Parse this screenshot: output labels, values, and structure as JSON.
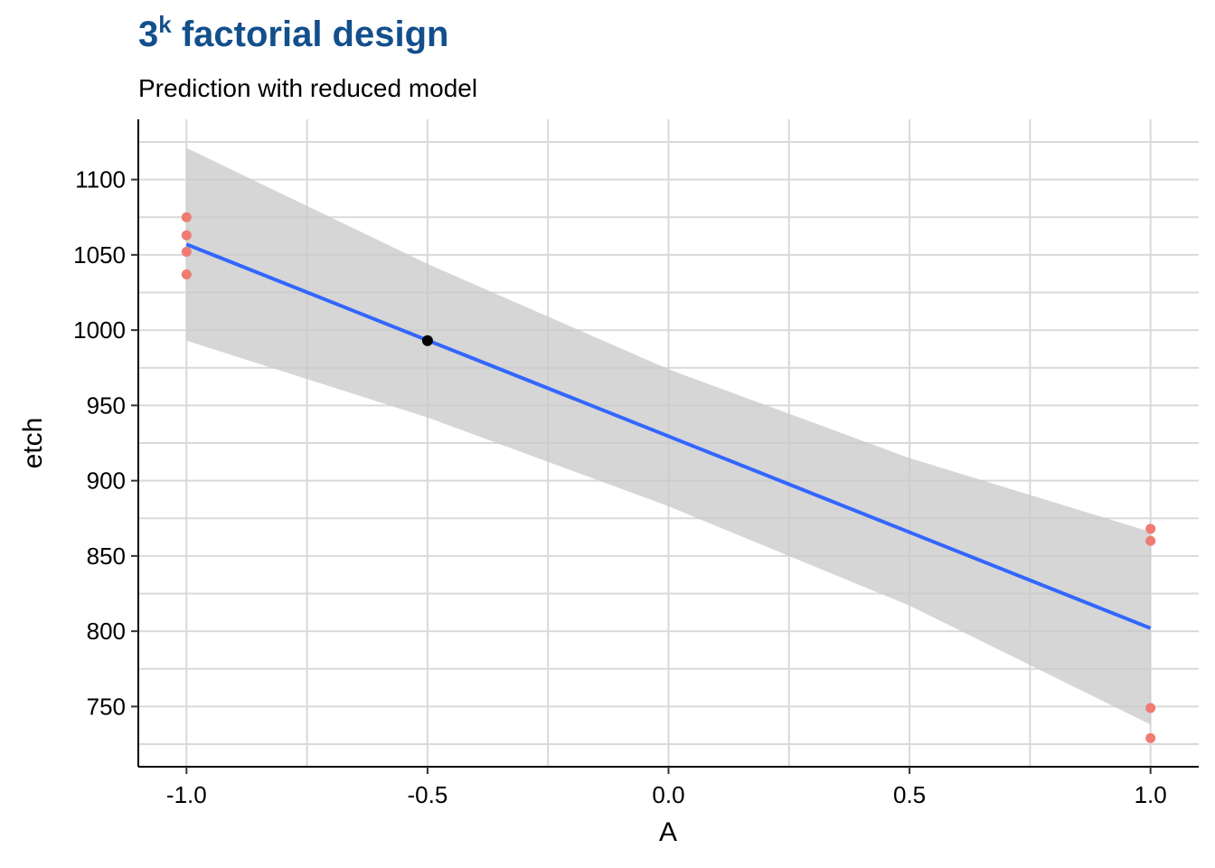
{
  "chart_data": {
    "type": "scatter",
    "title_base": "3",
    "title_sup": "k",
    "title_rest": " factorial design",
    "subtitle": "Prediction with reduced model",
    "xlabel": "A",
    "ylabel": "etch",
    "xlim": [
      -1.1,
      1.1
    ],
    "ylim": [
      710,
      1140
    ],
    "x_ticks": [
      -1.0,
      -0.5,
      0.0,
      0.5,
      1.0
    ],
    "x_tick_labels": [
      "-1.0",
      "-0.5",
      "0.0",
      "0.5",
      "1.0"
    ],
    "x_minor_ticks": [
      -0.75,
      -0.25,
      0.25,
      0.75
    ],
    "y_ticks": [
      750,
      800,
      850,
      900,
      950,
      1000,
      1050,
      1100
    ],
    "y_tick_labels": [
      "750",
      "800",
      "850",
      "900",
      "950",
      "1000",
      "1050",
      "1100"
    ],
    "y_minor_ticks": [
      725,
      775,
      825,
      875,
      925,
      975,
      1025,
      1075,
      1125
    ],
    "grid": true,
    "observations": {
      "color": "#f07b72",
      "points": [
        {
          "x": -1.0,
          "y": 1075
        },
        {
          "x": -1.0,
          "y": 1063
        },
        {
          "x": -1.0,
          "y": 1052
        },
        {
          "x": -1.0,
          "y": 1037
        },
        {
          "x": 1.0,
          "y": 868
        },
        {
          "x": 1.0,
          "y": 860
        },
        {
          "x": 1.0,
          "y": 749
        },
        {
          "x": 1.0,
          "y": 729
        }
      ]
    },
    "fit_line": {
      "color": "#3366ff",
      "x": [
        -1.0,
        1.0
      ],
      "y": [
        1057,
        802
      ]
    },
    "confidence_band": {
      "color": "#c8c8c8",
      "x": [
        -1.0,
        -0.5,
        0.0,
        0.5,
        1.0
      ],
      "upper": [
        1121,
        1044,
        974,
        915,
        866
      ],
      "lower": [
        993,
        942,
        883,
        817,
        738
      ]
    },
    "prediction_point": {
      "color": "#000000",
      "x": -0.5,
      "y": 993
    }
  }
}
